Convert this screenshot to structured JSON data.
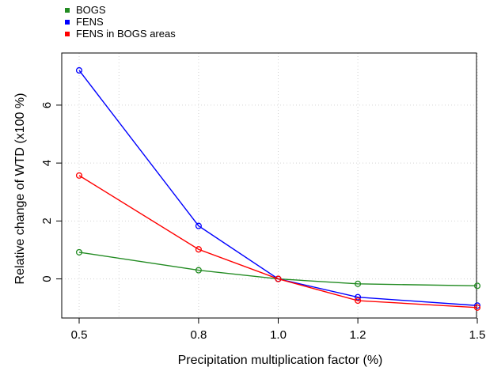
{
  "chart_data": {
    "type": "line",
    "x": [
      0.5,
      0.8,
      1.0,
      1.2,
      1.5
    ],
    "xticks": [
      0.5,
      0.8,
      1.0,
      1.2,
      1.5
    ],
    "xtick_labels": [
      "0.5",
      "0.8",
      "1.0",
      "1.2",
      "1.5"
    ],
    "xlim": [
      0.5,
      1.5
    ],
    "yticks": [
      0,
      2,
      4,
      6
    ],
    "ytick_labels": [
      "0",
      "2",
      "4",
      "6"
    ],
    "ylim": [
      -1.35,
      7.8
    ],
    "grid": true,
    "grid_x": [
      0.5,
      0.6,
      0.8,
      1.0,
      1.2,
      1.5
    ],
    "grid_y": [
      0,
      2,
      4,
      6
    ],
    "xlabel": "Precipitation multiplication factor (%)",
    "ylabel": "Relative change of WTD (x100 %)",
    "legend_position": "top-left, outside plot",
    "series": [
      {
        "name": "BOGS",
        "color": "#228B22",
        "values": [
          0.92,
          0.3,
          0.0,
          -0.17,
          -0.24
        ]
      },
      {
        "name": "FENS",
        "color": "#0000FF",
        "values": [
          7.2,
          1.83,
          0.0,
          -0.63,
          -0.92
        ]
      },
      {
        "name": "FENS in BOGS areas",
        "color": "#FF0000",
        "values": [
          3.57,
          1.02,
          0.0,
          -0.75,
          -0.99
        ]
      }
    ]
  }
}
